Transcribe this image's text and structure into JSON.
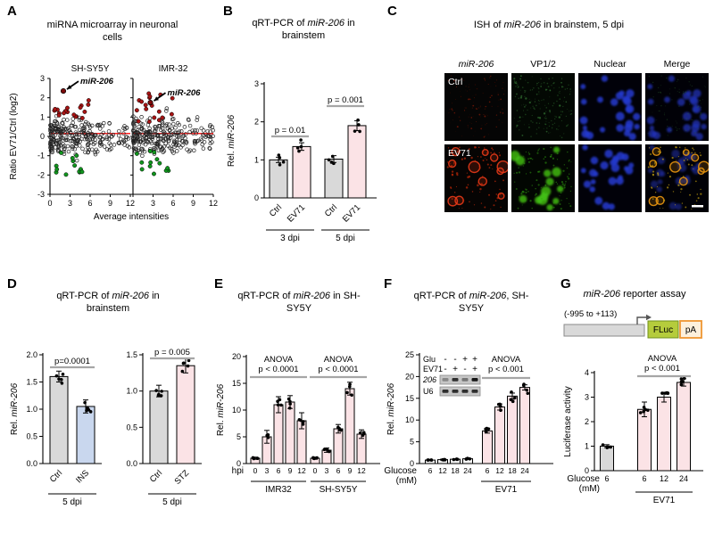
{
  "colors": {
    "annotation_orange": "#ee7700",
    "sig_line_gray": "#a6a6a6",
    "bar_gray": "#d9d9d9",
    "bar_pink": "#fbe3e6",
    "bar_blue": "#c9d7ee",
    "bar_white": "#f4f4f4",
    "scatter_red": "#a81414",
    "scatter_green": "#11961e",
    "ref_line_red": "#ff2020",
    "fluc_green": "#b5cc3c",
    "pa_orange": "#ef9632"
  },
  "panels": {
    "a": {
      "letter": "A",
      "title": "miRNA microarray in neuronal cells",
      "subplot_titles": [
        "SH-SY5Y",
        "IMR-32"
      ],
      "highlight": "miR-206",
      "ylabel": "Ratio EV71/Ctrl (log2)",
      "xlabel": "Average intensities"
    },
    "b": {
      "letter": "B",
      "title_parts": [
        {
          "t": "qRT-PCR of "
        },
        {
          "t": "miR-206",
          "i": true
        },
        {
          "t": " in brainstem"
        }
      ]
    },
    "c": {
      "letter": "C",
      "title_parts": [
        {
          "t": "ISH of "
        },
        {
          "t": "miR-206",
          "i": true
        },
        {
          "t": " in brainstem, 5 dpi"
        }
      ],
      "col_headers": [
        "miR-206",
        "VP1/2",
        "Nuclear",
        "Merge"
      ],
      "row_labels": [
        "Ctrl",
        "EV71"
      ],
      "cells": [
        [
          {
            "bg": "#050505",
            "layers": [
              {
                "type": "dot",
                "color": "#9c1e06",
                "n": 45,
                "rmin": 0.4,
                "rmax": 1.0,
                "op": 0.6,
                "seed": 11
              },
              {
                "type": "dot",
                "color": "#5a1000",
                "n": 70,
                "rmin": 0.3,
                "rmax": 0.8,
                "op": 0.5,
                "seed": 12
              }
            ]
          },
          {
            "bg": "#030803",
            "layers": [
              {
                "type": "dot",
                "color": "#2d6b2d",
                "n": 150,
                "rmin": 0.4,
                "rmax": 0.9,
                "op": 0.5,
                "seed": 21
              },
              {
                "type": "dot",
                "color": "#3f8f3f",
                "n": 30,
                "rmin": 0.7,
                "rmax": 1.3,
                "op": 0.55,
                "seed": 22
              }
            ]
          },
          {
            "bg": "#010109",
            "layers": [
              {
                "type": "blob",
                "color": "#2439cf",
                "n": 26,
                "rmin": 2.5,
                "rmax": 5,
                "op": 0.85,
                "seed": 31
              }
            ]
          },
          {
            "bg": "#010107",
            "layers": [
              {
                "type": "blob",
                "color": "#2030b4",
                "n": 26,
                "rmin": 2.5,
                "rmax": 5,
                "op": 0.75,
                "seed": 31
              },
              {
                "type": "dot",
                "color": "#2d6b2d",
                "n": 80,
                "rmin": 0.4,
                "rmax": 0.8,
                "op": 0.35,
                "seed": 41
              }
            ]
          }
        ],
        [
          {
            "bg": "#060403",
            "layers": [
              {
                "type": "ring",
                "color": "#e83a18",
                "n": 11,
                "rmin": 3,
                "rmax": 6.5,
                "op": 0.9,
                "seed": 51
              },
              {
                "type": "dot",
                "color": "#c62a08",
                "n": 80,
                "rmin": 0.5,
                "rmax": 1.3,
                "op": 0.65,
                "seed": 52
              }
            ]
          },
          {
            "bg": "#020602",
            "layers": [
              {
                "type": "blob",
                "color": "#43c414",
                "n": 14,
                "rmin": 3,
                "rmax": 6,
                "op": 0.8,
                "seed": 61
              },
              {
                "type": "dot",
                "color": "#2f9a10",
                "n": 100,
                "rmin": 0.5,
                "rmax": 1.2,
                "op": 0.55,
                "seed": 62
              }
            ]
          },
          {
            "bg": "#010109",
            "layers": [
              {
                "type": "blob",
                "color": "#2439cf",
                "n": 25,
                "rmin": 2.5,
                "rmax": 5,
                "op": 0.85,
                "seed": 71
              }
            ]
          },
          {
            "bg": "#010106",
            "layers": [
              {
                "type": "blob",
                "color": "#1f2ea8",
                "n": 22,
                "rmin": 2.5,
                "rmax": 5,
                "op": 0.55,
                "seed": 71
              },
              {
                "type": "ring",
                "color": "#e8950f",
                "n": 10,
                "rmin": 3,
                "rmax": 6,
                "op": 0.9,
                "seed": 51
              },
              {
                "type": "dot",
                "color": "#d8b010",
                "n": 70,
                "rmin": 0.5,
                "rmax": 1.2,
                "op": 0.6,
                "seed": 52
              }
            ]
          }
        ]
      ]
    },
    "d": {
      "letter": "D",
      "title_parts": [
        {
          "t": "qRT-PCR of "
        },
        {
          "t": "miR-206",
          "i": true
        },
        {
          "t": " in brainstem"
        }
      ]
    },
    "e": {
      "letter": "E",
      "title_parts": [
        {
          "t": "qRT-PCR of "
        },
        {
          "t": "miR-206",
          "i": true
        },
        {
          "t": " in SH-SY5Y"
        }
      ]
    },
    "f": {
      "letter": "F",
      "title_parts": [
        {
          "t": "qRT-PCR of "
        },
        {
          "t": "miR-206",
          "i": true
        },
        {
          "t": ", SH-SY5Y"
        }
      ]
    },
    "g": {
      "letter": "G",
      "title_parts": [
        {
          "t": "miR-206",
          "i": true
        },
        {
          "t": " reporter assay"
        }
      ]
    }
  },
  "chart_data": [
    {
      "id": "A",
      "type": "scatter",
      "title": "miRNA microarray in neuronal cells",
      "xlabel": "Average intensities",
      "ylabel": "Ratio EV71/Ctrl (log2)",
      "xlim": [
        0,
        12
      ],
      "ylim": [
        -3,
        3
      ],
      "xticks": [
        0,
        3,
        6,
        9,
        12
      ],
      "yticks": [
        3,
        2,
        1,
        0,
        -1,
        -2,
        -3
      ],
      "ref_line_y": 0.15,
      "subplots": [
        {
          "name": "SH-SY5Y",
          "seed": 101,
          "highlight_point": {
            "x": 2.0,
            "y": 2.35,
            "label": "miR-206"
          }
        },
        {
          "name": "IMR-32",
          "seed": 202,
          "highlight_point": {
            "x": 2.6,
            "y": 1.75,
            "label": "miR-206"
          }
        }
      ],
      "n_background_points": 270,
      "n_upregulated_red": 18,
      "n_downregulated_green": 13
    },
    {
      "id": "B",
      "type": "bar",
      "ylabel_parts": [
        {
          "t": "Rel. "
        },
        {
          "t": "miR-206",
          "i": true
        }
      ],
      "categories": [
        "Ctrl",
        "EV71",
        "Ctrl",
        "EV71"
      ],
      "values": [
        1.0,
        1.35,
        1.02,
        1.9
      ],
      "errors": [
        0.07,
        0.1,
        0.09,
        0.13
      ],
      "bar_colors": [
        "gray",
        "pink",
        "gray",
        "pink"
      ],
      "ylim": [
        0,
        3
      ],
      "yticks": [
        0,
        1,
        2,
        3
      ],
      "groups": [
        {
          "label": "3 dpi",
          "from": 0,
          "to": 1
        },
        {
          "label": "5 dpi",
          "from": 2,
          "to": 3
        }
      ],
      "sig": [
        {
          "text": "p = 0.01",
          "from": 0,
          "to": 1
        },
        {
          "text": "p = 0.001",
          "from": 2,
          "to": 3
        }
      ],
      "points_per_bar": 4
    },
    {
      "id": "D1",
      "type": "bar",
      "ylabel_parts": [
        {
          "t": "Rel. "
        },
        {
          "t": "miR-206",
          "i": true
        }
      ],
      "categories": [
        "Ctrl",
        "INS"
      ],
      "values": [
        1.6,
        1.05
      ],
      "errors": [
        0.1,
        0.12
      ],
      "bar_colors": [
        "gray",
        "blue"
      ],
      "ylim": [
        0,
        2
      ],
      "yticks": [
        0,
        0.5,
        1,
        1.5,
        2
      ],
      "groups": [
        {
          "label": "5 dpi",
          "from": 0,
          "to": 1
        }
      ],
      "sig": [
        {
          "text": "p=0.0001",
          "from": 0,
          "to": 1
        }
      ],
      "points_per_bar": 5
    },
    {
      "id": "D2",
      "type": "bar",
      "categories": [
        "Ctrl",
        "STZ"
      ],
      "values": [
        1.0,
        1.35
      ],
      "errors": [
        0.08,
        0.1
      ],
      "bar_colors": [
        "gray",
        "pink"
      ],
      "ylim": [
        0,
        1.5
      ],
      "yticks": [
        0,
        0.5,
        1,
        1.5
      ],
      "groups": [
        {
          "label": "5 dpi",
          "from": 0,
          "to": 1
        }
      ],
      "sig": [
        {
          "text": "p = 0.005",
          "from": 0,
          "to": 1
        }
      ],
      "points_per_bar": 5
    },
    {
      "id": "E",
      "type": "bar",
      "ylabel_parts": [
        {
          "t": "Rel. "
        },
        {
          "t": "miR-206",
          "i": true
        }
      ],
      "x_prefix": "hpi",
      "categories": [
        "0",
        "3",
        "6",
        "9",
        "12",
        "0",
        "3",
        "6",
        "9",
        "12"
      ],
      "values": [
        1,
        5,
        11,
        11.5,
        8,
        1,
        2.5,
        6.5,
        14,
        5.5
      ],
      "errors": [
        0.2,
        1.2,
        1.5,
        1.2,
        1.5,
        0.2,
        0.4,
        0.8,
        1.2,
        0.8
      ],
      "bar_colors": [
        "pink",
        "pink",
        "pink",
        "pink",
        "pink",
        "pink",
        "pink",
        "pink",
        "pink",
        "pink"
      ],
      "ylim": [
        0,
        20
      ],
      "yticks": [
        0,
        5,
        10,
        15,
        20
      ],
      "groups": [
        {
          "label": "IMR32",
          "from": 0,
          "to": 4
        },
        {
          "label": "SH-SY5Y",
          "from": 5,
          "to": 9
        }
      ],
      "anova": [
        {
          "lines": [
            "ANOVA",
            "p < 0.0001"
          ],
          "from": 0,
          "to": 4
        },
        {
          "lines": [
            "ANOVA",
            "p < 0.0001"
          ],
          "from": 5,
          "to": 9
        }
      ],
      "points_per_bar": 4
    },
    {
      "id": "F",
      "type": "bar",
      "ylabel_parts": [
        {
          "t": "Rel. "
        },
        {
          "t": "miR-206",
          "i": true
        }
      ],
      "x_prefix_lines": [
        "Glucose",
        "(mM)"
      ],
      "categories": [
        "6",
        "12",
        "18",
        "24",
        "6",
        "12",
        "18",
        "24"
      ],
      "values": [
        0.8,
        0.9,
        1.0,
        1.1,
        7.5,
        13,
        15.5,
        17.5
      ],
      "errors": [
        0.1,
        0.1,
        0.1,
        0.1,
        0.5,
        0.7,
        0.7,
        0.6
      ],
      "bar_colors": [
        "white",
        "white",
        "white",
        "white",
        "pink",
        "pink",
        "pink",
        "pink"
      ],
      "ylim": [
        0,
        25
      ],
      "yticks": [
        0,
        5,
        10,
        15,
        20,
        25
      ],
      "groups": [
        {
          "label": "EV71",
          "from": 4,
          "to": 7
        }
      ],
      "anova": [
        {
          "lines": [
            "ANOVA",
            "p < 0.001"
          ],
          "from": 4,
          "to": 7
        }
      ],
      "points_per_bar": 4,
      "inset": {
        "header_rows": [
          {
            "label": "Glu",
            "signs": [
              "-",
              "-",
              "+",
              "+"
            ]
          },
          {
            "label": "EV71",
            "signs": [
              "-",
              "+",
              "-",
              "+"
            ]
          }
        ],
        "gel_rows": [
          {
            "label": "206",
            "band_intensities": [
              0.35,
              0.85,
              0.45,
              1.0
            ]
          },
          {
            "label": "U6",
            "band_intensities": [
              0.85,
              0.85,
              0.85,
              0.85
            ]
          }
        ]
      }
    },
    {
      "id": "G_construct",
      "type": "diagram",
      "region_label": "(-995 to +113)",
      "boxes": [
        "FLuc",
        "pA"
      ]
    },
    {
      "id": "G",
      "type": "bar",
      "ylabel": "Luciferase activity",
      "x_prefix_lines": [
        "Glucose",
        "(mM)"
      ],
      "categories": [
        "6",
        "6",
        "12",
        "24"
      ],
      "values": [
        1.0,
        2.5,
        3.0,
        3.6
      ],
      "errors": [
        0.06,
        0.3,
        0.2,
        0.15
      ],
      "bar_colors": [
        "gray",
        "pink",
        "pink",
        "pink"
      ],
      "ylim": [
        0,
        4
      ],
      "yticks": [
        0,
        1,
        2,
        3,
        4
      ],
      "groups": [
        {
          "label": "EV71",
          "from": 1,
          "to": 3
        }
      ],
      "anova": [
        {
          "lines": [
            "ANOVA",
            "p < 0.001"
          ],
          "from": 1,
          "to": 3
        }
      ],
      "points_per_bar": 5
    }
  ]
}
